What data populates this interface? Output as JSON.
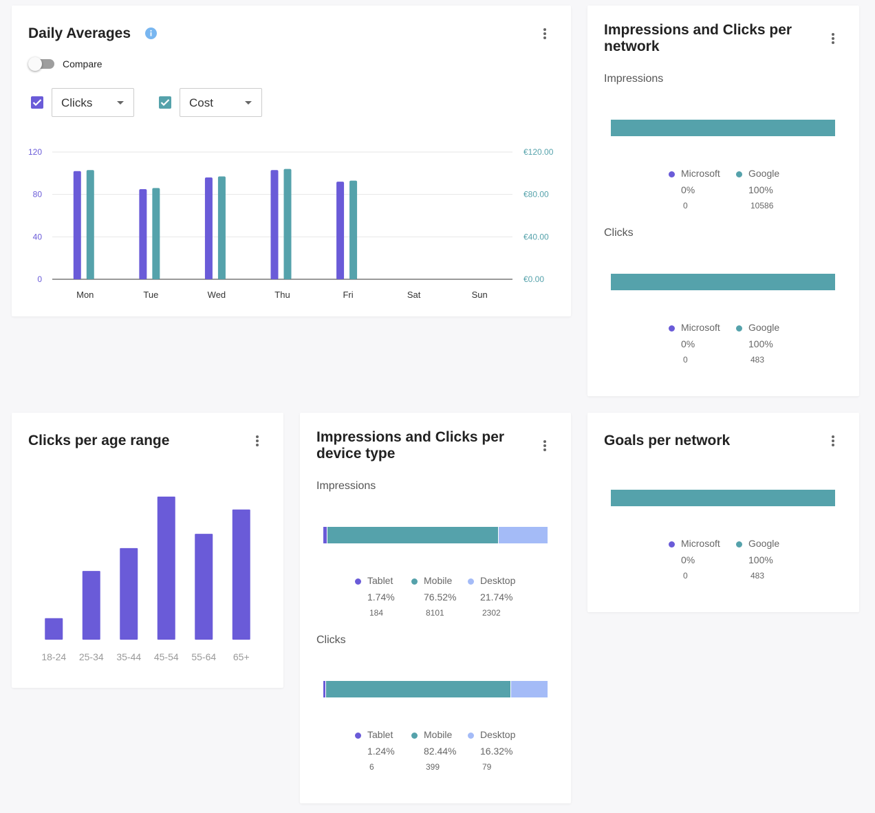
{
  "colors": {
    "purple": "#6a5bd8",
    "teal": "#55a2ab",
    "lightblue": "#a4bbf7",
    "info": "#78b6f0"
  },
  "daily": {
    "title": "Daily Averages",
    "info_icon": "info-icon",
    "compare_label": "Compare",
    "select1": "Clicks",
    "select2": "Cost"
  },
  "network": {
    "title": "Impressions and Clicks per network",
    "impressions": {
      "label": "Impressions",
      "segments": [
        {
          "name": "Microsoft",
          "pct": "0%",
          "count": "0",
          "value": 0
        },
        {
          "name": "Google",
          "pct": "100%",
          "count": "10586",
          "value": 100
        }
      ]
    },
    "clicks": {
      "label": "Clicks",
      "segments": [
        {
          "name": "Microsoft",
          "pct": "0%",
          "count": "0",
          "value": 0
        },
        {
          "name": "Google",
          "pct": "100%",
          "count": "483",
          "value": 100
        }
      ]
    }
  },
  "age": {
    "title": "Clicks per age range"
  },
  "device": {
    "title": "Impressions and Clicks per device type",
    "impressions": {
      "label": "Impressions",
      "segments": [
        {
          "name": "Tablet",
          "pct": "1.74%",
          "count": "184",
          "value": 1.74
        },
        {
          "name": "Mobile",
          "pct": "76.52%",
          "count": "8101",
          "value": 76.52
        },
        {
          "name": "Desktop",
          "pct": "21.74%",
          "count": "2302",
          "value": 21.74
        }
      ]
    },
    "clicks": {
      "label": "Clicks",
      "segments": [
        {
          "name": "Tablet",
          "pct": "1.24%",
          "count": "6",
          "value": 1.24
        },
        {
          "name": "Mobile",
          "pct": "82.44%",
          "count": "399",
          "value": 82.44
        },
        {
          "name": "Desktop",
          "pct": "16.32%",
          "count": "79",
          "value": 16.32
        }
      ]
    }
  },
  "goals": {
    "title": "Goals per network",
    "segments": [
      {
        "name": "Microsoft",
        "pct": "0%",
        "count": "0",
        "value": 0
      },
      {
        "name": "Google",
        "pct": "100%",
        "count": "483",
        "value": 100
      }
    ]
  },
  "chart_data": [
    {
      "type": "bar",
      "title": "Daily Averages",
      "categories": [
        "Mon",
        "Tue",
        "Wed",
        "Thu",
        "Fri",
        "Sat",
        "Sun"
      ],
      "series": [
        {
          "name": "Clicks",
          "axis": "left",
          "values": [
            102,
            85,
            96,
            103,
            92,
            null,
            null
          ]
        },
        {
          "name": "Cost",
          "axis": "right",
          "values": [
            103,
            86,
            97,
            104,
            93,
            null,
            null
          ]
        }
      ],
      "ylim": [
        0,
        120
      ],
      "yticks": [
        "0",
        "40",
        "80",
        "120"
      ],
      "y2lim": [
        0,
        120
      ],
      "y2ticks": [
        "€0.00",
        "€40.00",
        "€80.00",
        "€120.00"
      ]
    },
    {
      "type": "bar",
      "title": "Clicks per age range",
      "categories": [
        "18-24",
        "25-34",
        "35-44",
        "45-54",
        "55-64",
        "65+"
      ],
      "values": [
        15,
        48,
        64,
        100,
        74,
        91
      ],
      "ylim": [
        0,
        100
      ]
    }
  ]
}
